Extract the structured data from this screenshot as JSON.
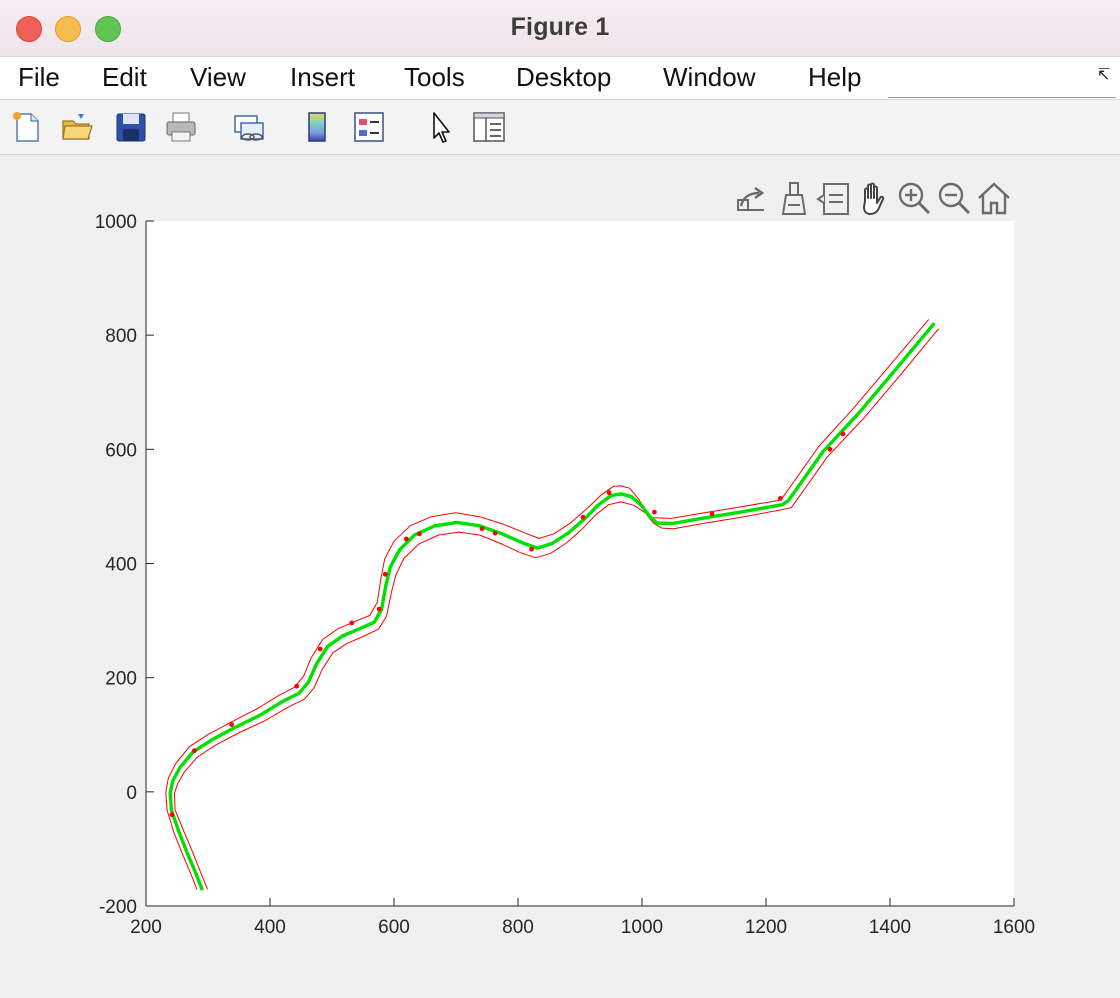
{
  "window": {
    "title": "Figure 1"
  },
  "menu": [
    "File",
    "Edit",
    "View",
    "Insert",
    "Tools",
    "Desktop",
    "Window",
    "Help"
  ],
  "toolbar_icons": [
    "new-figure-icon",
    "open-file-icon",
    "save-icon",
    "print-icon",
    "link-plot-icon",
    "insert-colorbar-icon",
    "insert-legend-icon",
    "edit-plot-pointer-icon",
    "property-inspector-icon"
  ],
  "axes_toolbar_icons": [
    "export-icon",
    "brush-icon",
    "data-tips-icon",
    "pan-hand-icon",
    "zoom-in-icon",
    "zoom-out-icon",
    "restore-view-home-icon"
  ],
  "chart_data": {
    "type": "line",
    "xlim": [
      200,
      1600
    ],
    "ylim": [
      -200,
      1000
    ],
    "xticks": [
      "200",
      "400",
      "600",
      "800",
      "1000",
      "1200",
      "1400",
      "1600"
    ],
    "yticks": [
      "-200",
      "0",
      "200",
      "400",
      "600",
      "800",
      "1000"
    ],
    "grid": false,
    "series": [
      {
        "color": "#00e000",
        "x": [
          290,
          279,
          266,
          253,
          241,
          239,
          243,
          255,
          276,
          306,
          344,
          385,
          420,
          447,
          462,
          475,
          493,
          517,
          545,
          568,
          580,
          587,
          594,
          609,
          633,
          666,
          702,
          738,
          774,
          808,
          831,
          855,
          882,
          908,
          930,
          950,
          966,
          983,
          999,
          1011,
          1024,
          1049,
          1102,
          1159,
          1226,
          1236,
          1292,
          1350,
          1410,
          1470
        ],
        "y": [
          -170,
          -139,
          -106,
          -70,
          -32,
          -2,
          19,
          43,
          70,
          91,
          113,
          135,
          158,
          173,
          192,
          224,
          255,
          273,
          286,
          297,
          320,
          362,
          394,
          424,
          450,
          466,
          472,
          466,
          452,
          436,
          427,
          435,
          454,
          479,
          503,
          519,
          522,
          517,
          502,
          484,
          471,
          470,
          480,
          490,
          503,
          510,
          596,
          664,
          741,
          819
        ]
      },
      {
        "color": "#ff0000",
        "x": [
          299,
          287,
          275,
          261,
          247,
          246,
          251,
          262,
          283,
          311,
          349,
          391,
          427,
          456,
          471,
          484,
          501,
          524,
          552,
          575,
          588,
          596,
          603,
          616,
          640,
          672,
          705,
          738,
          772,
          804,
          829,
          853,
          878,
          903,
          925,
          946,
          966,
          987,
          1005,
          1018,
          1032,
          1051,
          1103,
          1160,
          1229,
          1241,
          1299,
          1358,
          1418,
          1478
        ],
        "y": [
          -170,
          -138,
          -105,
          -69,
          -32,
          -3,
          14,
          35,
          61,
          81,
          103,
          124,
          147,
          163,
          182,
          214,
          243,
          260,
          273,
          285,
          308,
          350,
          380,
          409,
          434,
          450,
          455,
          450,
          435,
          419,
          410,
          418,
          436,
          460,
          485,
          503,
          508,
          502,
          489,
          471,
          462,
          461,
          471,
          481,
          495,
          498,
          587,
          655,
          732,
          811
        ]
      },
      {
        "color": "#ff0000",
        "x": [
          282,
          271,
          258,
          245,
          234,
          232,
          236,
          248,
          270,
          301,
          339,
          380,
          414,
          439,
          454,
          466,
          485,
          510,
          538,
          561,
          573,
          579,
          585,
          600,
          626,
          660,
          699,
          738,
          776,
          812,
          834,
          858,
          886,
          913,
          935,
          954,
          966,
          980,
          993,
          1004,
          1017,
          1047,
          1101,
          1158,
          1223,
          1231,
          1285,
          1342,
          1402,
          1462
        ],
        "y": [
          -170,
          -140,
          -107,
          -71,
          -32,
          -1,
          24,
          50,
          79,
          101,
          123,
          146,
          169,
          183,
          202,
          234,
          267,
          286,
          299,
          309,
          332,
          374,
          408,
          439,
          466,
          482,
          489,
          482,
          469,
          453,
          444,
          452,
          472,
          498,
          521,
          535,
          536,
          532,
          515,
          497,
          480,
          479,
          489,
          499,
          511,
          522,
          605,
          673,
          750,
          827
        ]
      }
    ],
    "markers": {
      "color": "#ff0000",
      "x": [
        242,
        278,
        338,
        443,
        481,
        532,
        576,
        586,
        620,
        641,
        742,
        763,
        822,
        905,
        947,
        1020,
        1113,
        1223,
        1303,
        1324
      ],
      "y": [
        -40,
        72,
        118,
        185,
        250,
        296,
        320,
        381,
        443,
        452,
        461,
        453,
        425,
        481,
        524,
        490,
        487,
        514,
        600,
        627
      ]
    }
  }
}
